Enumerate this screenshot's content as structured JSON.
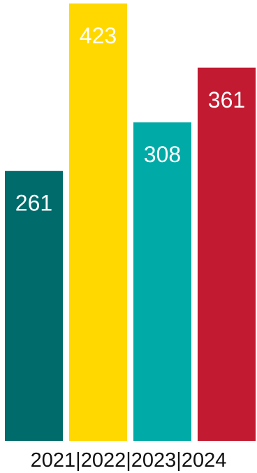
{
  "chart_data": {
    "type": "bar",
    "categories": [
      "2021",
      "2022",
      "2023",
      "2024"
    ],
    "values": [
      261,
      423,
      308,
      361
    ],
    "colors": [
      "#006b6b",
      "#ffd800",
      "#00aaa6",
      "#c21a30"
    ],
    "separator": "|",
    "data_labels": true,
    "title": "",
    "xlabel": "",
    "ylabel": "",
    "ylim": [
      0,
      423
    ],
    "grid": false,
    "legend": "none"
  }
}
